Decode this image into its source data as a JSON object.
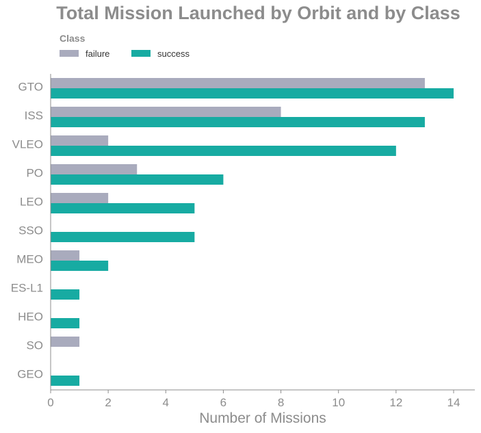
{
  "chart_data": {
    "type": "bar",
    "orientation": "horizontal",
    "title": "Total Mission Launched by Orbit and by Class",
    "xlabel": "Number of Missions",
    "ylabel": "",
    "legend_title": "Class",
    "legend_position": "top-left",
    "grid": false,
    "categories": [
      "GTO",
      "ISS",
      "VLEO",
      "PO",
      "LEO",
      "SSO",
      "MEO",
      "ES-L1",
      "HEO",
      "SO",
      "GEO"
    ],
    "xlim": [
      0,
      14.7
    ],
    "xticks": [
      "0",
      "2",
      "4",
      "6",
      "8",
      "10",
      "12",
      "14"
    ],
    "series": [
      {
        "name": "failure",
        "color": "#a9abbd",
        "values": [
          13,
          8,
          2,
          3,
          2,
          0,
          1,
          0,
          0,
          1,
          0
        ]
      },
      {
        "name": "success",
        "color": "#17aba2",
        "values": [
          14,
          13,
          12,
          6,
          5,
          5,
          2,
          1,
          1,
          0,
          1
        ]
      }
    ]
  }
}
